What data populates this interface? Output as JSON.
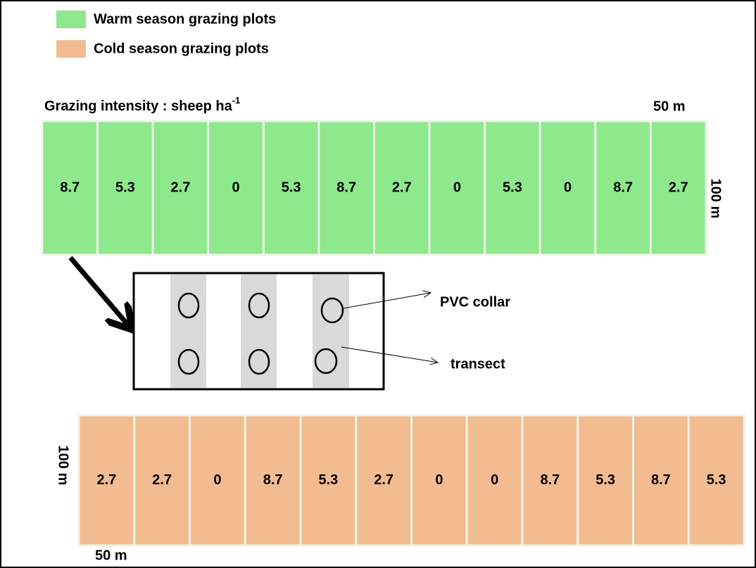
{
  "legend": [
    {
      "label": "Warm season grazing plots",
      "color": "#8ee88c"
    },
    {
      "label": "Cold season grazing plots",
      "color": "#f2bc90"
    }
  ],
  "intensity_label": {
    "text": "Grazing  intensity : sheep ha",
    "superscript": "-1"
  },
  "warm_plots": {
    "width_label": "50  m",
    "length_label": "100 m",
    "color": "#8ee88c",
    "values": [
      8.7,
      5.3,
      2.7,
      0,
      5.3,
      8.7,
      2.7,
      0,
      5.3,
      0,
      8.7,
      2.7
    ]
  },
  "cold_plots": {
    "width_label": "50  m",
    "length_label": "100 m",
    "color": "#f2bc90",
    "values": [
      2.7,
      2.7,
      0,
      8.7,
      5.3,
      2.7,
      0,
      0,
      8.7,
      5.3,
      8.7,
      5.3
    ]
  },
  "inset": {
    "collar_label": "PVC collar",
    "transect_label": "transect"
  }
}
